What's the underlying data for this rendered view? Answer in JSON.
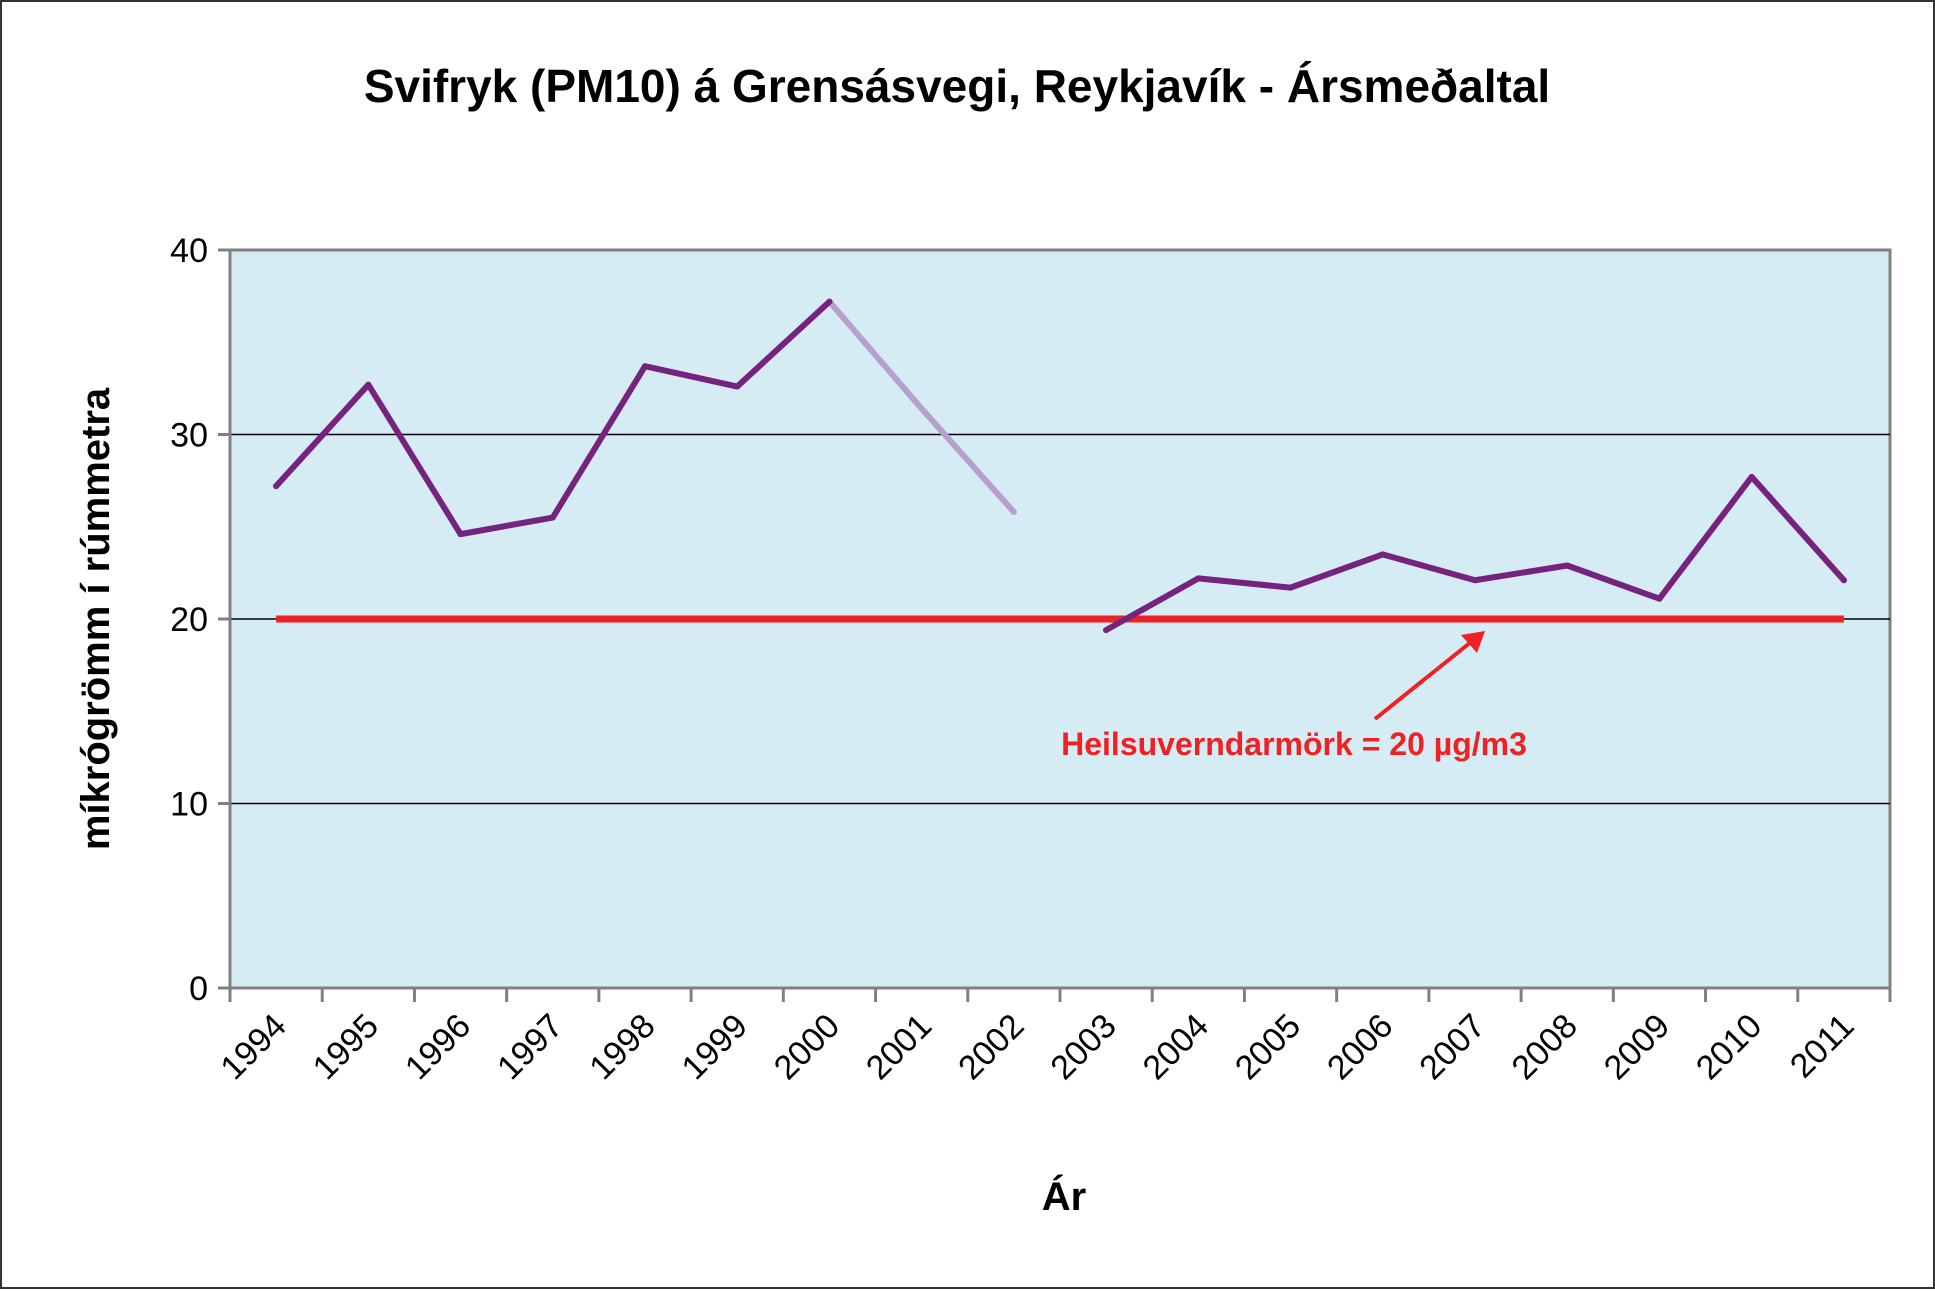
{
  "chart_data": {
    "type": "line",
    "title": "Svifryk (PM10) á Grensásvegi, Reykjavík - Ársmeðaltal",
    "xlabel": "Ár",
    "ylabel": "míkrógrömm í rúmmetra",
    "categories": [
      "1994",
      "1995",
      "1996",
      "1997",
      "1998",
      "1999",
      "2000",
      "2001",
      "2002",
      "2003",
      "2004",
      "2005",
      "2006",
      "2007",
      "2008",
      "2009",
      "2010",
      "2011"
    ],
    "series": [
      {
        "values": [
          27.2,
          32.7,
          24.6,
          25.5,
          33.7,
          32.6,
          37.2,
          null,
          null,
          19.4,
          22.2,
          21.7,
          23.5,
          22.1,
          22.9,
          21.1,
          27.7,
          22.1
        ],
        "interpolated": [
          null,
          null,
          null,
          null,
          null,
          null,
          37.2,
          31.4,
          25.8,
          null,
          null,
          null,
          null,
          null,
          null,
          null,
          null,
          null
        ],
        "color": "#76237f",
        "interpolated_color": "#b79fce"
      }
    ],
    "reference_line": {
      "value": 20,
      "color": "#ee2124",
      "label": "Heilsuverndarmörk = 20 µg/m3"
    },
    "ylim": [
      0,
      40
    ],
    "yticks": [
      0,
      10,
      20,
      30,
      40
    ],
    "grid": true,
    "plot_background": "#d6ecf4",
    "gridline_color": "#000000"
  }
}
